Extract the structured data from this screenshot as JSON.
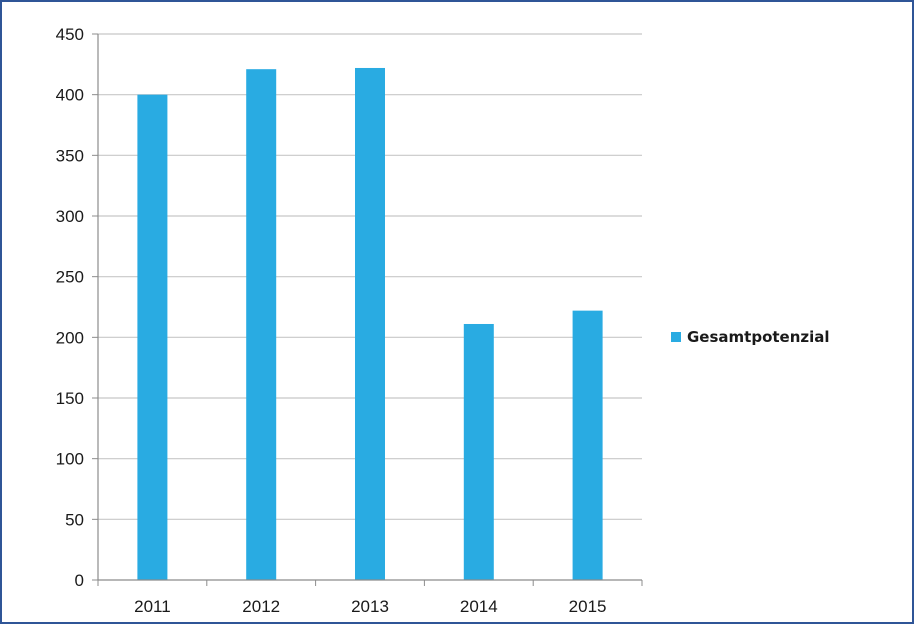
{
  "chart_data": {
    "type": "bar",
    "title": "",
    "xlabel": "",
    "ylabel": "",
    "categories": [
      "2011",
      "2012",
      "2013",
      "2014",
      "2015"
    ],
    "series": [
      {
        "name": "Gesamtpotenzial",
        "values": [
          400,
          421,
          422,
          211,
          222
        ]
      }
    ],
    "ylim": [
      0,
      450
    ],
    "yticks": [
      "0",
      "50",
      "100",
      "150",
      "200",
      "250",
      "300",
      "350",
      "400",
      "450"
    ],
    "grid": true,
    "legend_position": "right",
    "bar_color": "#29abe2",
    "grid_color": "#c8c8c8",
    "axis_color": "#8c8c8c",
    "border_color": "#2f5597"
  }
}
